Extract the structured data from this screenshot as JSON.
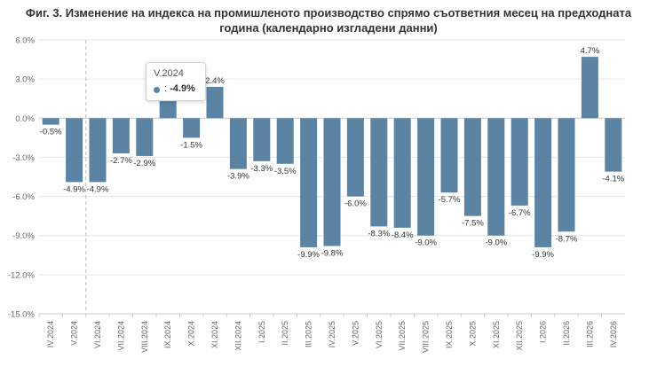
{
  "chart_data": {
    "type": "bar",
    "title_line1": "Фиг. 3. Изменение на индекса на промишленото производство спрямо съответния месец на предходната",
    "title_line2": "година (календарно изгладени данни)",
    "categories": [
      "IV.2024",
      "V.2024",
      "VI.2024",
      "VII.2024",
      "VIII.2024",
      "IX.2024",
      "X.2024",
      "XI.2024",
      "XII.2024",
      "I.2025",
      "II.2025",
      "III.2025",
      "IV.2025",
      "V.2025",
      "VI.2025",
      "VII.2025",
      "VIII.2025",
      "IX.2025",
      "X.2025",
      "XI.2025",
      "XII.2025",
      "I.2026",
      "II.2026",
      "III.2026",
      "IV.2026"
    ],
    "values": [
      -0.5,
      -4.9,
      -4.9,
      -2.7,
      -2.9,
      1.3,
      -1.5,
      2.4,
      -3.9,
      -3.3,
      -3.5,
      -9.9,
      -9.8,
      -6.0,
      -8.3,
      -8.4,
      -9.0,
      -5.7,
      -7.5,
      -9.0,
      -6.7,
      -9.9,
      -8.7,
      4.7,
      -4.1
    ],
    "data_labels": [
      "-0.5%",
      "-4.9%",
      "-4.9%",
      "-2.7%",
      "-2.9%",
      "",
      "-1.5%",
      "2.4%",
      "-3.9%",
      "-3.3%",
      "-3.5%",
      "-9.9%",
      "-9.8%",
      "-6.0%",
      "-8.3%",
      "-8.4%",
      "-9.0%",
      "-5.7%",
      "-7.5%",
      "-9.0%",
      "-6.7%",
      "-9.9%",
      "-8.7%",
      "4.7%",
      "-4.1%"
    ],
    "y_ticks": [
      "6.0%",
      "3.0%",
      "0.0%",
      "-3.0%",
      "-6.0%",
      "-9.0%",
      "-12.0%",
      "-15.0%"
    ],
    "y_tick_values": [
      6,
      3,
      0,
      -3,
      -6,
      -9,
      -12,
      -15
    ],
    "ylim": [
      -15,
      6
    ],
    "grid": true,
    "bar_color": "#5b83a3",
    "crosshair_category": "V.2024"
  },
  "tooltip": {
    "title": "V.2024",
    "separator": ": ",
    "value": "-4.9%"
  }
}
